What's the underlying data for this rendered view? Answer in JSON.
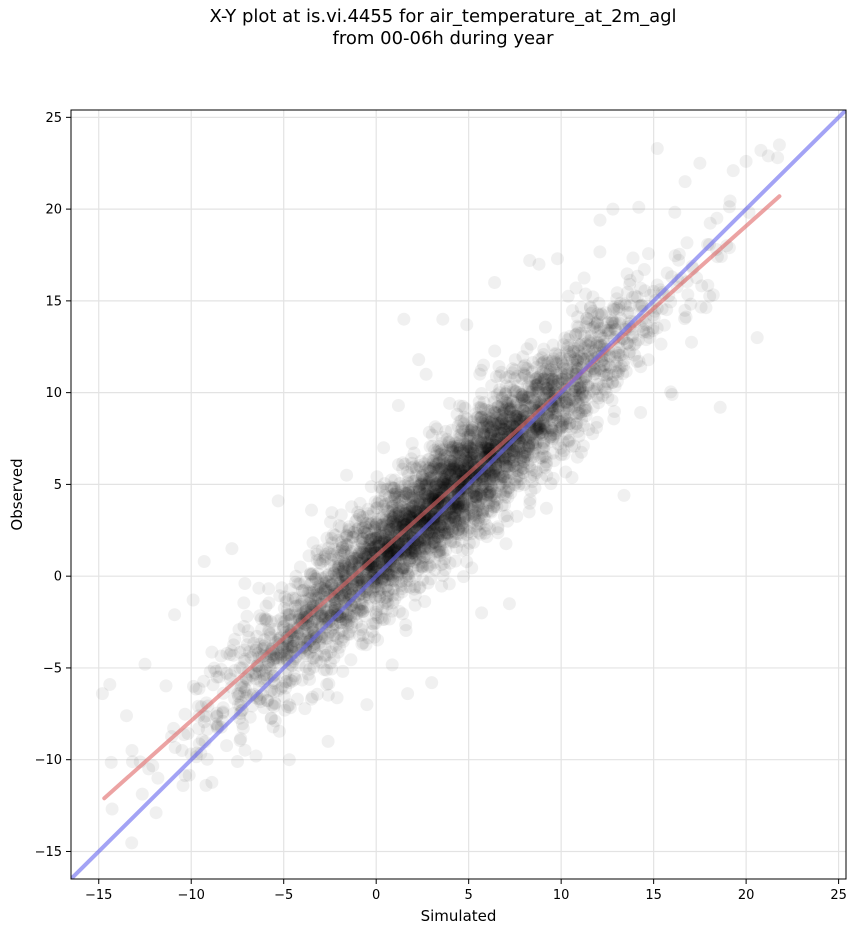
{
  "chart_data": {
    "type": "scatter",
    "title_lines": [
      "X-Y plot at is.vi.4455 for air_temperature_at_2m_agl",
      "from 00-06h during year"
    ],
    "xlabel": "Simulated",
    "ylabel": "Observed",
    "xlim": [
      -16.5,
      25.4
    ],
    "ylim": [
      -16.5,
      25.4
    ],
    "xticks": [
      -15,
      -10,
      -5,
      0,
      5,
      10,
      15,
      20,
      25
    ],
    "yticks": [
      -15,
      -10,
      -5,
      0,
      5,
      10,
      15,
      20,
      25
    ],
    "grid": true,
    "point_color": "#000000",
    "point_alpha": 0.06,
    "series": [
      {
        "kind": "points",
        "x": [
          -14.8,
          -14.4,
          -13.5,
          -13.2,
          -12.5,
          -12.3,
          -11.8,
          -10.9,
          -10.5,
          -9.9,
          -9.6,
          -9.3,
          -9.2,
          -8.6,
          -8.3,
          -7.8,
          -7.5,
          -7.1,
          -6.5,
          -5.3,
          -4.7,
          -3.5,
          -2.6,
          -1.6,
          -0.5,
          0.4,
          1.2,
          1.7,
          2.3,
          3.0,
          4.9,
          5.7,
          6.4,
          7.2,
          8.3,
          9.2,
          10.8,
          12.1,
          13.4,
          14.2,
          15.2,
          16.0,
          16.7,
          17.5,
          18.4,
          18.6,
          19.3,
          20.0,
          20.6,
          20.8,
          21.2,
          21.7,
          21.8,
          3.6,
          5.8,
          8.8,
          9.8,
          7.1,
          11.2,
          14.8,
          12.8,
          -3.0,
          -4.1,
          1.5,
          2.7
        ],
        "y": [
          -6.4,
          -5.9,
          -7.6,
          -9.5,
          -4.8,
          -10.5,
          -11.0,
          -2.1,
          -9.5,
          -1.3,
          -8.3,
          0.8,
          -11.4,
          -5.5,
          -7.9,
          1.5,
          -10.1,
          -0.4,
          -9.8,
          4.1,
          -10.0,
          3.6,
          -9.0,
          5.5,
          -7.0,
          7.0,
          9.3,
          -6.4,
          11.8,
          -5.8,
          13.7,
          -2.0,
          16.0,
          -1.5,
          17.2,
          3.7,
          15.7,
          19.4,
          4.4,
          20.1,
          23.3,
          9.9,
          21.5,
          22.5,
          17.8,
          9.2,
          22.1,
          22.6,
          13.0,
          23.2,
          22.9,
          22.8,
          23.5,
          14.0,
          11.5,
          17.0,
          17.3,
          3.0,
          7.1,
          13.0,
          20.0,
          -1.5,
          0.5,
          14.0,
          11.0
        ]
      },
      {
        "kind": "cloud",
        "count": 4200,
        "x_range": [
          -14.7,
          21.8
        ],
        "fit_slope": 0.9,
        "fit_intercept": 0.95,
        "noise_sd": 1.7
      },
      {
        "kind": "line",
        "name": "",
        "color": "#e06666",
        "x": [
          -14.7,
          21.8
        ],
        "y": [
          -12.1,
          20.7
        ]
      },
      {
        "kind": "line",
        "name": "",
        "color": "#6666ee",
        "x": [
          -16.5,
          25.4
        ],
        "y": [
          -16.5,
          25.4
        ]
      }
    ]
  }
}
